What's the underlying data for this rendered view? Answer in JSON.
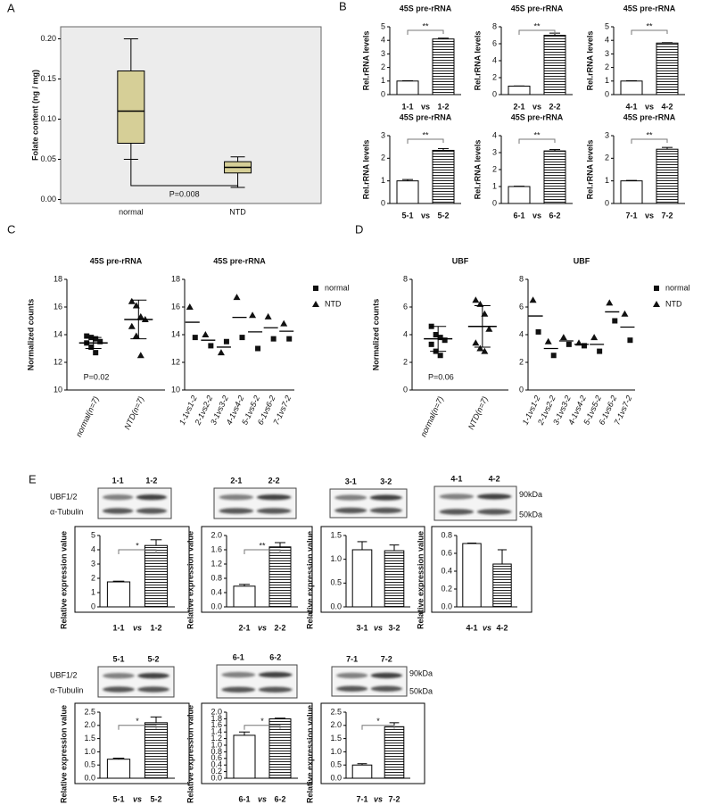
{
  "panels": [
    "A",
    "B",
    "C",
    "D",
    "E"
  ],
  "blot": {
    "rows": [
      "UBF1/2",
      "α-Tubulin"
    ],
    "sizes": [
      "90kDa",
      "50kDa"
    ]
  },
  "chart_data": [
    {
      "type": "box",
      "ylabel": "Folate content (ng / mg)",
      "categories": [
        "normal",
        "NTD"
      ],
      "color": "#d6cf97",
      "boxes": [
        {
          "min": 0.05,
          "q1": 0.07,
          "median": 0.11,
          "q3": 0.16,
          "max": 0.2
        },
        {
          "min": 0.015,
          "q1": 0.033,
          "median": 0.04,
          "q3": 0.047,
          "max": 0.053
        }
      ],
      "annotation": "P=0.008",
      "ylim": [
        -0.005,
        0.215
      ],
      "yticks": [
        {
          "value": 0,
          "label": "0.00"
        },
        0.05,
        {
          "value": 0.1,
          "label": "0.10"
        },
        0.15,
        {
          "value": 0.2,
          "label": "0.20"
        }
      ]
    },
    {
      "type": "bar",
      "title": "45S pre-rRNA",
      "ylabel": "Rel.rRNA levels",
      "categories": [
        "1-1",
        "1-2"
      ],
      "xlabel": "vs",
      "values": [
        1,
        4.1
      ],
      "errors": [
        0.02,
        0.06
      ],
      "annotation": "**",
      "ylim": [
        0,
        5
      ],
      "yticks": [
        0,
        1,
        2,
        3,
        4,
        5
      ]
    },
    {
      "type": "bar",
      "title": "45S pre-rRNA",
      "ylabel": "Rel.rRNA levels",
      "categories": [
        "2-1",
        "2-2"
      ],
      "xlabel": "vs",
      "values": [
        1,
        7
      ],
      "errors": [
        0.02,
        0.25
      ],
      "annotation": "**",
      "ylim": [
        0,
        8
      ],
      "yticks": [
        0,
        2,
        4,
        6,
        8
      ]
    },
    {
      "type": "bar",
      "title": "45S pre-rRNA",
      "ylabel": "Rel.rRNA levels",
      "categories": [
        "4-1",
        "4-2"
      ],
      "xlabel": "vs",
      "values": [
        1,
        3.8
      ],
      "errors": [
        0.02,
        0.03
      ],
      "annotation": "**",
      "ylim": [
        0,
        5
      ],
      "yticks": [
        0,
        1,
        2,
        3,
        4,
        5
      ]
    },
    {
      "type": "bar",
      "title": "45S pre-rRNA",
      "ylabel": "Rel.rRNA levels",
      "categories": [
        "5-1",
        "5-2"
      ],
      "xlabel": "vs",
      "values": [
        1,
        2.35
      ],
      "errors": [
        0.06,
        0.08
      ],
      "annotation": "**",
      "ylim": [
        0,
        3
      ],
      "yticks": [
        0,
        1,
        2,
        3
      ]
    },
    {
      "type": "bar",
      "title": "45S pre-rRNA",
      "ylabel": "Rel.rRNA levels",
      "categories": [
        "6-1",
        "6-2"
      ],
      "xlabel": "vs",
      "values": [
        1,
        3.1
      ],
      "errors": [
        0.02,
        0.08
      ],
      "annotation": "**",
      "ylim": [
        0,
        4
      ],
      "yticks": [
        0,
        1,
        2,
        3,
        4
      ]
    },
    {
      "type": "bar",
      "title": "45S pre-rRNA",
      "ylabel": "Rel.rRNA levels",
      "categories": [
        "7-1",
        "7-2"
      ],
      "xlabel": "vs",
      "values": [
        1,
        2.4
      ],
      "errors": [
        0.02,
        0.08
      ],
      "annotation": "**",
      "ylim": [
        0,
        3
      ],
      "yticks": [
        0,
        1,
        2,
        3
      ]
    },
    {
      "type": "dot",
      "title": "45S pre-rRNA",
      "ylabel": "Normalized counts",
      "categories": [
        "normal(n=7)",
        "NTD(n=7)"
      ],
      "markers": [
        "square",
        "triangle"
      ],
      "points": [
        [
          13.9,
          13.8,
          13.7,
          13.5,
          13.4,
          13.1,
          12.7
        ],
        [
          16.4,
          16.1,
          15.3,
          15.1,
          14.6,
          13.9,
          12.5
        ]
      ],
      "means": [
        13.4,
        15.1
      ],
      "sd": [
        0.4,
        1.4
      ],
      "annotation": "P=0.02",
      "ylim": [
        10,
        18
      ],
      "yticks": [
        10,
        12,
        14,
        16,
        18
      ]
    },
    {
      "type": "paired",
      "title": "45S pre-rRNA",
      "categories": [
        "1-1vs1-2",
        "2-1vs2-2",
        "3-1vs3-2",
        "4-1vs4-2",
        "5-1vs5-2",
        "6-1vs6-2",
        "7-1vs7-2"
      ],
      "series": [
        {
          "name": "normal",
          "marker": "square",
          "values": [
            13.8,
            13.2,
            13.5,
            13.8,
            13.0,
            13.7,
            13.7
          ]
        },
        {
          "name": "NTD",
          "marker": "triangle",
          "values": [
            16.0,
            14.0,
            12.7,
            16.7,
            15.4,
            15.3,
            14.8
          ]
        }
      ],
      "means": [
        14.9,
        13.6,
        13.1,
        15.25,
        14.2,
        14.5,
        14.25
      ],
      "legend": "right",
      "ylim": [
        10,
        18
      ],
      "yticks": [
        10,
        12,
        14,
        16,
        18
      ]
    },
    {
      "type": "dot",
      "title": "UBF",
      "ylabel": "Normalized counts",
      "categories": [
        "normal(n=7)",
        "NTD(n=7)"
      ],
      "markers": [
        "square",
        "triangle"
      ],
      "points": [
        [
          4.6,
          4.0,
          3.8,
          3.6,
          3.3,
          2.8,
          2.5
        ],
        [
          6.5,
          6.2,
          5.5,
          4.4,
          3.4,
          3.0,
          2.8
        ]
      ],
      "means": [
        3.7,
        4.6
      ],
      "sd": [
        0.9,
        1.5
      ],
      "annotation": "P=0.06",
      "ylim": [
        0,
        8
      ],
      "yticks": [
        0,
        2,
        4,
        6,
        8
      ]
    },
    {
      "type": "paired",
      "title": "UBF",
      "categories": [
        "1-1vs1-2",
        "2-1vs2-2",
        "3-1vs3-2",
        "4-1vs4-2",
        "5-1vs5-2",
        "6-1vs6-2",
        "7-1vs7-2"
      ],
      "series": [
        {
          "name": "normal",
          "marker": "square",
          "values": [
            4.2,
            2.5,
            3.3,
            3.2,
            2.8,
            5.0,
            3.6
          ]
        },
        {
          "name": "NTD",
          "marker": "triangle",
          "values": [
            6.5,
            3.5,
            3.8,
            3.4,
            3.8,
            6.3,
            5.5
          ]
        }
      ],
      "means": [
        5.35,
        3.0,
        3.55,
        3.3,
        3.3,
        5.65,
        4.55
      ],
      "legend": "right",
      "ylim": [
        0,
        8
      ],
      "yticks": [
        0,
        2,
        4,
        6,
        8
      ]
    },
    {
      "type": "bar",
      "ylabel": "Relative expression value",
      "categories": [
        "1-1",
        "1-2"
      ],
      "xlabel": "vs",
      "values": [
        1.75,
        4.3
      ],
      "errors": [
        0.05,
        0.4
      ],
      "annotation": "*",
      "ylim": [
        0,
        5
      ],
      "yticks": [
        0,
        1,
        2,
        3,
        4,
        5
      ]
    },
    {
      "type": "bar",
      "ylabel": "Relative expression value",
      "categories": [
        "2-1",
        "2-2"
      ],
      "xlabel": "vs",
      "values": [
        0.58,
        1.68
      ],
      "errors": [
        0.05,
        0.12
      ],
      "annotation": "**",
      "ylim": [
        0,
        2
      ],
      "yticks": [
        {
          "value": 0,
          "label": "0.0"
        },
        0.4,
        0.8,
        1.2,
        1.6,
        {
          "value": 2,
          "label": "2.0"
        }
      ]
    },
    {
      "type": "bar",
      "ylabel": "Relative expression value",
      "categories": [
        "3-1",
        "3-2"
      ],
      "xlabel": "vs",
      "values": [
        1.2,
        1.18
      ],
      "errors": [
        0.17,
        0.12
      ],
      "ylim": [
        0,
        1.5
      ],
      "yticks": [
        {
          "value": 0,
          "label": "0.0"
        },
        0.5,
        {
          "value": 1,
          "label": "1.0"
        },
        1.5
      ]
    },
    {
      "type": "bar",
      "ylabel": "Relative expression value",
      "categories": [
        "4-1",
        "4-2"
      ],
      "xlabel": "vs",
      "values": [
        0.71,
        0.48
      ],
      "errors": [
        0.005,
        0.16
      ],
      "ylim": [
        0,
        0.8
      ],
      "yticks": [
        {
          "value": 0,
          "label": "0.0"
        },
        0.2,
        0.4,
        0.6,
        0.8
      ]
    },
    {
      "type": "bar",
      "ylabel": "Relative expression value",
      "categories": [
        "5-1",
        "5-2"
      ],
      "xlabel": "vs",
      "values": [
        0.72,
        2.1
      ],
      "errors": [
        0.04,
        0.22
      ],
      "annotation": "*",
      "ylim": [
        0,
        2.5
      ],
      "yticks": [
        {
          "value": 0,
          "label": "0.0"
        },
        0.5,
        {
          "value": 1,
          "label": "1.0"
        },
        1.5,
        {
          "value": 2,
          "label": "2.0"
        },
        2.5
      ]
    },
    {
      "type": "bar",
      "ylabel": "Relative expression value",
      "categories": [
        "6-1",
        "6-2"
      ],
      "xlabel": "vs",
      "values": [
        1.3,
        1.8
      ],
      "errors": [
        0.1,
        0.02
      ],
      "annotation": "*",
      "ylim": [
        0,
        2
      ],
      "yticks": [
        {
          "value": 0,
          "label": "0.0"
        },
        0.2,
        0.4,
        0.6,
        0.8,
        {
          "value": 1,
          "label": "1.0"
        },
        1.2,
        1.4,
        1.6,
        1.8,
        {
          "value": 2,
          "label": "2.0"
        }
      ]
    },
    {
      "type": "bar",
      "ylabel": "Relative expression value",
      "categories": [
        "7-1",
        "7-2"
      ],
      "xlabel": "vs",
      "values": [
        0.5,
        1.95
      ],
      "errors": [
        0.05,
        0.15
      ],
      "annotation": "*",
      "ylim": [
        0,
        2.5
      ],
      "yticks": [
        {
          "value": 0,
          "label": "0.0"
        },
        0.5,
        {
          "value": 1,
          "label": "1.0"
        },
        1.5,
        {
          "value": 2,
          "label": "2.0"
        },
        2.5
      ]
    }
  ]
}
